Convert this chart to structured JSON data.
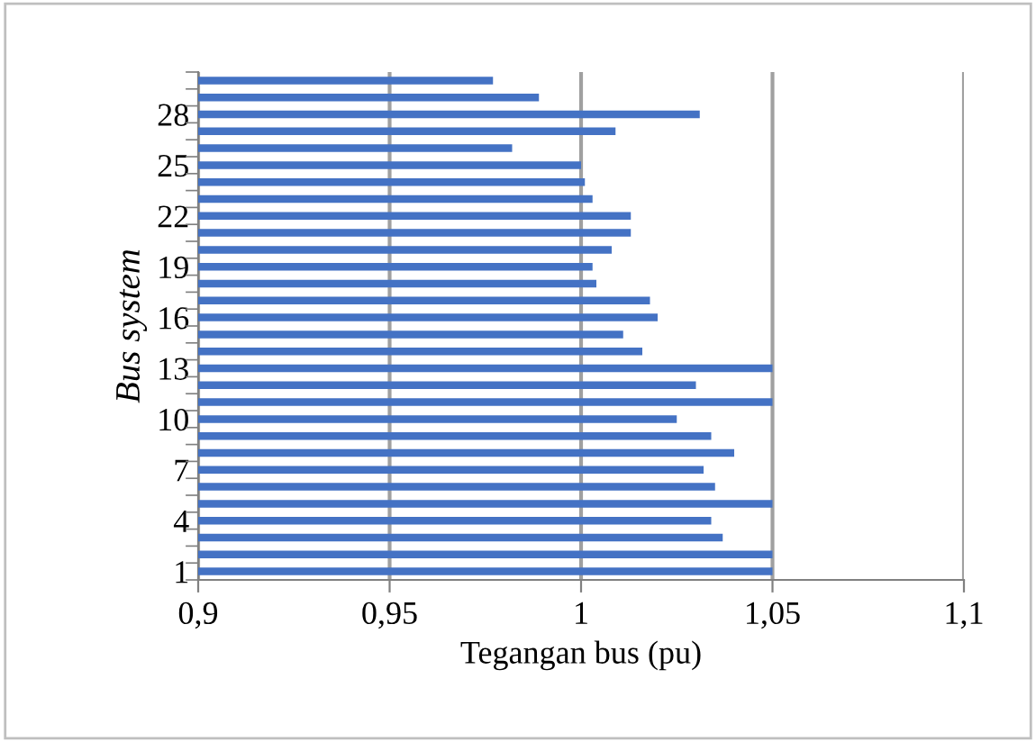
{
  "chart_data": {
    "type": "bar",
    "orientation": "horizontal",
    "xlabel": "Tegangan bus (pu)",
    "ylabel": "Bus system",
    "categories": [
      null,
      null,
      "28",
      null,
      null,
      "25",
      null,
      null,
      "22",
      null,
      null,
      "19",
      null,
      null,
      "16",
      null,
      null,
      "13",
      null,
      null,
      "10",
      null,
      null,
      "7",
      null,
      null,
      "4",
      null,
      null,
      "1"
    ],
    "values": [
      0.977,
      0.989,
      1.031,
      1.009,
      0.982,
      1.0,
      1.001,
      1.003,
      1.013,
      1.013,
      1.008,
      1.003,
      1.004,
      1.018,
      1.02,
      1.011,
      1.016,
      1.05,
      1.03,
      1.05,
      1.025,
      1.034,
      1.04,
      1.032,
      1.035,
      1.05,
      1.034,
      1.037,
      1.05,
      1.05
    ],
    "color": "#4472c4",
    "xlim": [
      0.9,
      1.1
    ],
    "xticks": [
      {
        "value": 0.9,
        "label": "0,9"
      },
      {
        "value": 0.95,
        "label": "0,95"
      },
      {
        "value": 1,
        "label": "1"
      },
      {
        "value": 1.05,
        "label": "1,05"
      },
      {
        "value": 1.1,
        "label": "1,1"
      }
    ],
    "grid": "x"
  }
}
